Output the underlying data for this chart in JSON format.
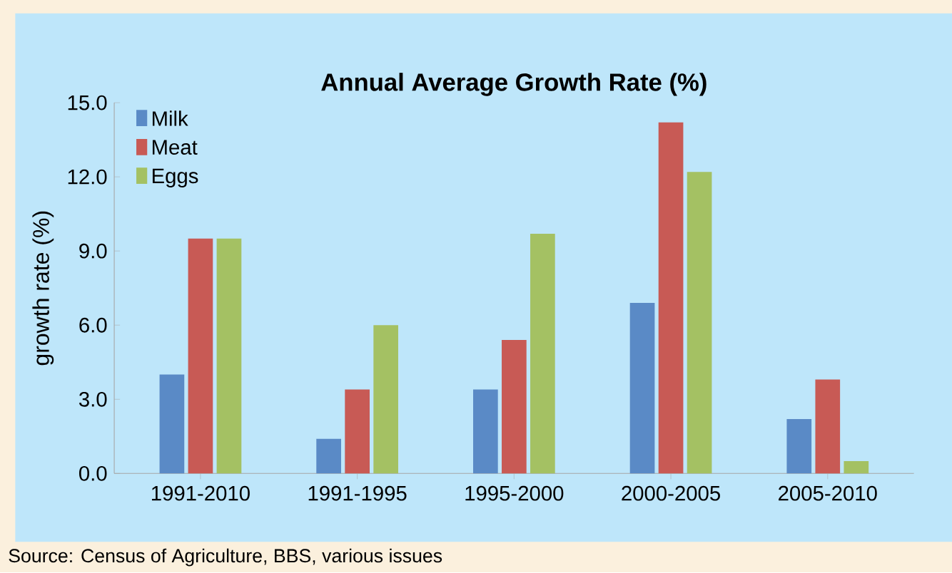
{
  "chart_data": {
    "type": "bar",
    "title": "Annual Average Growth Rate (%)",
    "ylabel": "growth rate (%)",
    "categories": [
      "1991-2010",
      "1991-1995",
      "1995-2000",
      "2000-2005",
      "2005-2010"
    ],
    "series": [
      {
        "name": "Milk",
        "color": "#5a8ac6",
        "values": [
          4.0,
          1.4,
          3.4,
          6.9,
          2.2
        ]
      },
      {
        "name": "Meat",
        "color": "#c85a55",
        "values": [
          9.5,
          3.4,
          5.4,
          14.2,
          3.8
        ]
      },
      {
        "name": "Eggs",
        "color": "#a4c163",
        "values": [
          9.5,
          6.0,
          9.7,
          12.2,
          0.5
        ]
      }
    ],
    "ylim": [
      0,
      15
    ],
    "yticks": [
      {
        "value": 0,
        "label": "0.0"
      },
      {
        "value": 3,
        "label": "3.0"
      },
      {
        "value": 6,
        "label": "6.0"
      },
      {
        "value": 9,
        "label": "9.0"
      },
      {
        "value": 12,
        "label": "12.0"
      },
      {
        "value": 15,
        "label": "15.0"
      }
    ],
    "legend": "top left",
    "grid": false,
    "annotations": [
      "Source: Census of Agriculture, BBS, various issues"
    ]
  }
}
